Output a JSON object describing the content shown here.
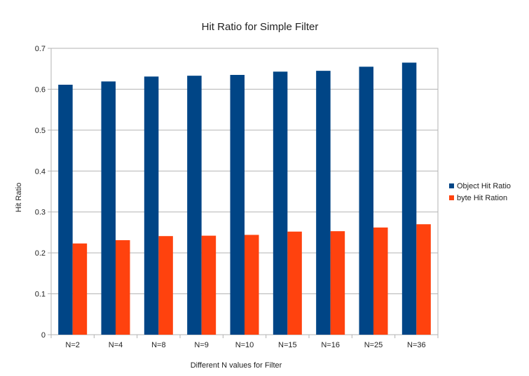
{
  "chart_data": {
    "type": "bar",
    "title": "Hit Ratio for Simple Filter",
    "xlabel": "Different N values for Filter",
    "ylabel": "Hit Ratio",
    "categories": [
      "N=2",
      "N=4",
      "N=8",
      "N=9",
      "N=10",
      "N=15",
      "N=16",
      "N=25",
      "N=36"
    ],
    "series": [
      {
        "name": "Object Hit Ratio",
        "color": "#004586",
        "values": [
          0.611,
          0.619,
          0.631,
          0.633,
          0.635,
          0.643,
          0.645,
          0.655,
          0.665
        ]
      },
      {
        "name": "byte Hit Ration",
        "color": "#ff420e",
        "values": [
          0.223,
          0.231,
          0.241,
          0.242,
          0.244,
          0.252,
          0.253,
          0.262,
          0.27
        ]
      }
    ],
    "ylim": [
      0,
      0.7
    ],
    "yticks": [
      "0",
      "0.1",
      "0.2",
      "0.3",
      "0.4",
      "0.5",
      "0.6",
      "0.7"
    ],
    "grid": true,
    "legend": "right"
  }
}
